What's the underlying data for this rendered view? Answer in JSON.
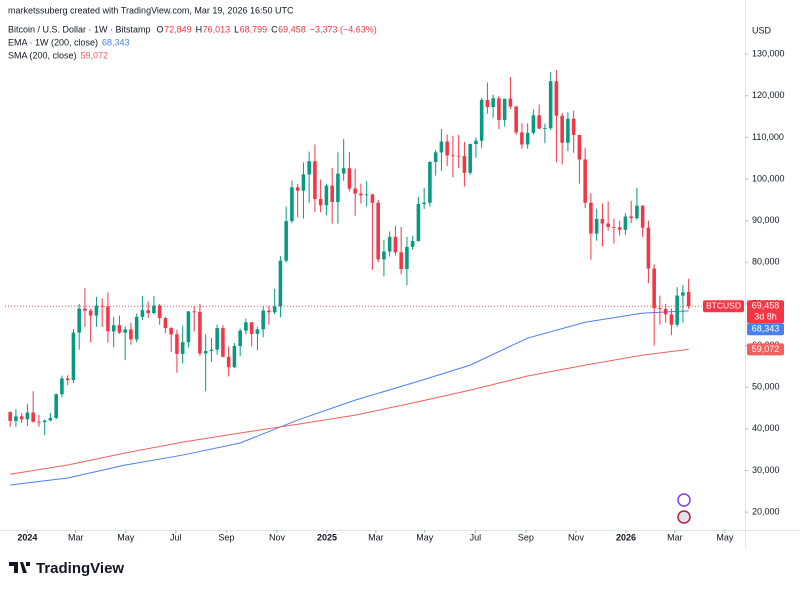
{
  "chart_data": {
    "type": "candlestick",
    "source": "marketssuberg created with TradingView.com, Mar 19, 2026 16:50 UTC",
    "title": "Bitcoin / U.S. Dollar · 1W · Bitstamp",
    "ohlc_legend": [
      [
        "O",
        "72,849"
      ],
      [
        "H",
        "76,013"
      ],
      [
        "L",
        "68,799"
      ],
      [
        "C",
        "69,458"
      ]
    ],
    "change": "−3,373 (−4.63%)",
    "currency": "USD",
    "symbol": "BTCUSD",
    "close_label": "69,458",
    "countdown": "3d 8h",
    "up_color": "#089981",
    "down_color": "#f23645",
    "x": [
      0,
      1,
      2,
      3,
      4,
      5,
      6,
      7,
      8,
      9,
      10,
      11,
      12,
      13,
      14,
      15,
      16,
      17,
      18,
      19,
      20,
      21,
      22,
      23,
      24,
      25,
      26,
      27,
      28,
      29,
      30,
      31,
      32,
      33,
      34,
      35,
      36,
      37,
      38,
      39,
      40,
      41,
      42,
      43,
      44,
      45,
      46,
      47,
      48,
      49,
      50,
      51,
      52,
      53,
      54,
      55,
      56,
      57,
      58,
      59,
      60,
      61,
      62,
      63,
      64,
      65,
      66,
      67,
      68,
      69,
      70,
      71,
      72,
      73,
      74,
      75,
      76,
      77,
      78,
      79,
      80,
      81,
      82,
      83,
      84,
      85,
      86,
      87,
      88,
      89,
      90,
      91,
      92,
      93,
      94,
      95,
      96,
      97,
      98,
      99,
      100,
      101,
      102,
      103,
      104,
      105,
      106,
      107,
      108,
      109,
      110,
      111,
      112,
      113,
      114,
      115,
      116,
      117,
      118
    ],
    "ohlc": [
      [
        44000,
        44200,
        40500,
        41900
      ],
      [
        41900,
        44700,
        40500,
        43000
      ],
      [
        43000,
        43800,
        41400,
        42300
      ],
      [
        42300,
        45900,
        40700,
        43900
      ],
      [
        43900,
        49000,
        41500,
        41700
      ],
      [
        41700,
        43300,
        40500,
        41600
      ],
      [
        41600,
        42200,
        38500,
        42000
      ],
      [
        42000,
        43800,
        41800,
        42600
      ],
      [
        42600,
        48500,
        42300,
        48300
      ],
      [
        48300,
        52800,
        47600,
        52100
      ],
      [
        52100,
        52900,
        50500,
        51700
      ],
      [
        51700,
        64000,
        51000,
        63100
      ],
      [
        63100,
        70000,
        59000,
        68900
      ],
      [
        68900,
        73800,
        64500,
        68400
      ],
      [
        68400,
        68900,
        60800,
        67200
      ],
      [
        67200,
        71700,
        64500,
        69600
      ],
      [
        69600,
        71300,
        64500,
        69400
      ],
      [
        69400,
        72800,
        60700,
        63400
      ],
      [
        63400,
        66900,
        59600,
        64900
      ],
      [
        64900,
        67200,
        62800,
        63100
      ],
      [
        63100,
        64600,
        56500,
        63900
      ],
      [
        63900,
        65500,
        60200,
        61500
      ],
      [
        61500,
        67700,
        60800,
        66900
      ],
      [
        66900,
        71900,
        66100,
        68500
      ],
      [
        68500,
        70600,
        66600,
        67800
      ],
      [
        67800,
        71900,
        67500,
        69600
      ],
      [
        69600,
        70000,
        65000,
        66600
      ],
      [
        66600,
        66900,
        63000,
        64200
      ],
      [
        64200,
        64500,
        58500,
        62700
      ],
      [
        62700,
        63800,
        53500,
        58000
      ],
      [
        58000,
        64800,
        55700,
        60800
      ],
      [
        60800,
        68300,
        59500,
        68200
      ],
      [
        68200,
        69400,
        63400,
        68100
      ],
      [
        68100,
        70000,
        57500,
        58100
      ],
      [
        58100,
        62700,
        49000,
        58700
      ],
      [
        58700,
        61800,
        56100,
        59000
      ],
      [
        59000,
        65000,
        57800,
        64200
      ],
      [
        64200,
        64900,
        57200,
        57300
      ],
      [
        57300,
        59800,
        52600,
        54800
      ],
      [
        54800,
        60600,
        54600,
        59900
      ],
      [
        59900,
        64100,
        57500,
        63600
      ],
      [
        63600,
        66500,
        62700,
        65600
      ],
      [
        65600,
        65600,
        59800,
        62800
      ],
      [
        62800,
        64500,
        58900,
        63900
      ],
      [
        63900,
        69400,
        62000,
        68400
      ],
      [
        68400,
        69500,
        65000,
        68000
      ],
      [
        68000,
        73600,
        67500,
        69400
      ],
      [
        69400,
        81500,
        66800,
        80400
      ],
      [
        80400,
        93400,
        79900,
        89900
      ],
      [
        89900,
        99600,
        89400,
        98000
      ],
      [
        98000,
        98800,
        90800,
        97200
      ],
      [
        97200,
        104000,
        90500,
        101100
      ],
      [
        101100,
        106600,
        94300,
        104300
      ],
      [
        104300,
        108300,
        92100,
        95200
      ],
      [
        95200,
        99900,
        92000,
        93700
      ],
      [
        93700,
        98900,
        91300,
        98400
      ],
      [
        98400,
        102700,
        89300,
        94500
      ],
      [
        94500,
        106400,
        89300,
        101300
      ],
      [
        101300,
        109600,
        99600,
        102600
      ],
      [
        102600,
        106500,
        97000,
        97700
      ],
      [
        97700,
        102500,
        91200,
        96500
      ],
      [
        96500,
        98900,
        94100,
        96100
      ],
      [
        96100,
        99500,
        93400,
        96300
      ],
      [
        96300,
        96500,
        78200,
        94300
      ],
      [
        94300,
        95000,
        80000,
        80700
      ],
      [
        80700,
        85300,
        76600,
        82600
      ],
      [
        82600,
        87400,
        81400,
        86100
      ],
      [
        86100,
        88800,
        81600,
        82400
      ],
      [
        82400,
        88500,
        77100,
        78400
      ],
      [
        78400,
        86100,
        74500,
        83700
      ],
      [
        83700,
        86400,
        83000,
        85100
      ],
      [
        85100,
        95700,
        85000,
        94000
      ],
      [
        94000,
        97900,
        92800,
        94300
      ],
      [
        94300,
        104300,
        93400,
        104100
      ],
      [
        104100,
        107000,
        100800,
        106400
      ],
      [
        106400,
        112000,
        102000,
        109000
      ],
      [
        109000,
        110700,
        103100,
        105700
      ],
      [
        105700,
        110400,
        100400,
        105600
      ],
      [
        105600,
        110600,
        102700,
        105500
      ],
      [
        105500,
        108900,
        98200,
        101500
      ],
      [
        101500,
        108500,
        101000,
        108400
      ],
      [
        108400,
        110000,
        105100,
        109200
      ],
      [
        109200,
        119500,
        107400,
        119000
      ],
      [
        119000,
        123200,
        115700,
        117300
      ],
      [
        117300,
        120200,
        114700,
        119400
      ],
      [
        119400,
        119900,
        112000,
        114200
      ],
      [
        114200,
        119300,
        112600,
        119300
      ],
      [
        119300,
        124500,
        116800,
        117400
      ],
      [
        117400,
        117600,
        110600,
        111200
      ],
      [
        111200,
        113400,
        107300,
        108300
      ],
      [
        108300,
        113400,
        107300,
        111100
      ],
      [
        111100,
        116700,
        110600,
        115300
      ],
      [
        115300,
        117900,
        112000,
        112100
      ],
      [
        112100,
        113300,
        108600,
        112200
      ],
      [
        112200,
        125700,
        111800,
        123500
      ],
      [
        123500,
        126200,
        104000,
        115200
      ],
      [
        115200,
        115900,
        103500,
        108700
      ],
      [
        108700,
        116000,
        106700,
        114500
      ],
      [
        114500,
        116400,
        106300,
        110600
      ],
      [
        110600,
        110600,
        98900,
        104700
      ],
      [
        104700,
        107500,
        93000,
        94300
      ],
      [
        94300,
        96600,
        80600,
        86900
      ],
      [
        86900,
        92900,
        85200,
        90400
      ],
      [
        90400,
        94100,
        83800,
        89300
      ],
      [
        89300,
        94600,
        87600,
        88500
      ],
      [
        88500,
        90500,
        84500,
        88400
      ],
      [
        88400,
        90000,
        86400,
        87800
      ],
      [
        87800,
        91800,
        86600,
        91000
      ],
      [
        91000,
        94800,
        89400,
        90600
      ],
      [
        90600,
        97900,
        90200,
        93600
      ],
      [
        93600,
        93700,
        86100,
        88300
      ],
      [
        88300,
        90000,
        75000,
        78500
      ],
      [
        78500,
        79500,
        60000,
        69000
      ],
      [
        69000,
        72000,
        65000,
        68800
      ],
      [
        68800,
        70000,
        65500,
        67500
      ],
      [
        67500,
        68900,
        62500,
        65000
      ],
      [
        65000,
        74000,
        64500,
        72000
      ],
      [
        72000,
        74500,
        65500,
        72800
      ],
      [
        72849,
        76013,
        68799,
        69458
      ]
    ],
    "series": [
      {
        "name": "EMA · 1W (200, close)",
        "color": "#4a7ff0",
        "last_label": "68,343",
        "x": [
          0,
          10,
          20,
          30,
          40,
          50,
          60,
          70,
          80,
          90,
          100,
          110,
          118
        ],
        "values": [
          26500,
          28200,
          31300,
          33700,
          36600,
          42100,
          46900,
          51000,
          55300,
          61800,
          65600,
          67800,
          68343
        ]
      },
      {
        "name": "SMA (200, close)",
        "color": "#f0605d",
        "last_label": "59,072",
        "x": [
          0,
          10,
          20,
          30,
          40,
          50,
          60,
          70,
          80,
          90,
          100,
          110,
          118
        ],
        "values": [
          29100,
          31300,
          34200,
          36800,
          39000,
          41100,
          43300,
          46200,
          49300,
          52700,
          55300,
          57700,
          59072
        ]
      }
    ],
    "xlim": [
      -0.9,
      127.8
    ],
    "xticks": [
      {
        "value": 3,
        "label": "2024"
      },
      {
        "value": 11.4,
        "label": "Mar"
      },
      {
        "value": 20.1,
        "label": "May"
      },
      {
        "value": 28.8,
        "label": "Jul"
      },
      {
        "value": 37.6,
        "label": "Sep"
      },
      {
        "value": 46.4,
        "label": "Nov"
      },
      {
        "value": 55.1,
        "label": "2025"
      },
      {
        "value": 63.6,
        "label": "Mar"
      },
      {
        "value": 72.1,
        "label": "May"
      },
      {
        "value": 80.9,
        "label": "Jul"
      },
      {
        "value": 89.7,
        "label": "Sep"
      },
      {
        "value": 98.4,
        "label": "Nov"
      },
      {
        "value": 107.1,
        "label": "2026"
      },
      {
        "value": 115.6,
        "label": "Mar"
      },
      {
        "value": 124.3,
        "label": "May"
      }
    ],
    "ylim": [
      15700,
      139400
    ],
    "yticks": [
      {
        "value": 20000,
        "label": "20,000"
      },
      {
        "value": 30000,
        "label": "30,000"
      },
      {
        "value": 40000,
        "label": "40,000"
      },
      {
        "value": 50000,
        "label": "50,000"
      },
      {
        "value": 60000,
        "label": "60,000"
      },
      {
        "value": 70000,
        "label": "70,000"
      },
      {
        "value": 80000,
        "label": "80,000"
      },
      {
        "value": 90000,
        "label": "90,000"
      },
      {
        "value": 100000,
        "label": "100,000"
      },
      {
        "value": 110000,
        "label": "110,000"
      },
      {
        "value": 120000,
        "label": "120,000"
      },
      {
        "value": 130000,
        "label": "130,000"
      }
    ],
    "brand": "TradingView"
  }
}
